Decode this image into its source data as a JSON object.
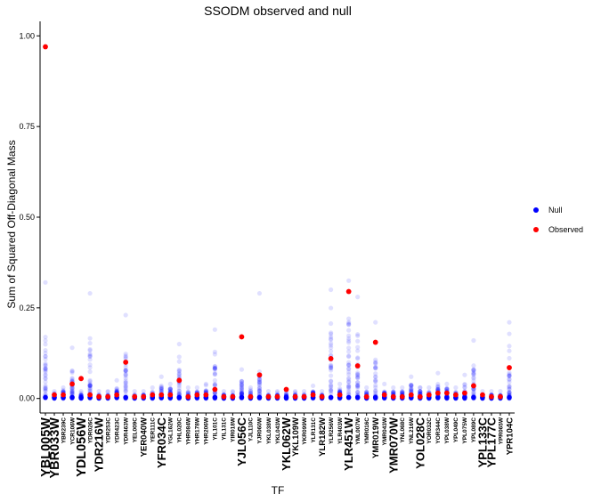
{
  "chart_data": {
    "type": "scatter",
    "title": "SSODM observed and null",
    "xlabel": "TF",
    "ylabel": "Sum of Squared Off-Diagonal Mass",
    "ylim": [
      -0.04,
      1.04
    ],
    "yticks": [
      "0.00",
      "0.25",
      "0.50",
      "0.75",
      "1.00"
    ],
    "grid": false,
    "legend_position": "right",
    "legend": [
      {
        "name": "Null",
        "color": "#0000ff"
      },
      {
        "name": "Observed",
        "color": "#ff0000"
      }
    ],
    "tick_label_size_note": "labels vary in size as in the original",
    "categories": [
      {
        "label": "YBL005W",
        "size": "xl",
        "observed": 0.97,
        "null_max": 0.32,
        "null_dense": 0.18
      },
      {
        "label": "YBR033W",
        "size": "xl",
        "observed": 0.01,
        "null_max": 0.02,
        "null_dense": 0.015
      },
      {
        "label": "YBR239C",
        "size": "s",
        "observed": 0.01,
        "null_max": 0.03,
        "null_dense": 0.02
      },
      {
        "label": "YCR106W",
        "size": "s",
        "observed": 0.04,
        "null_max": 0.14,
        "null_dense": 0.08
      },
      {
        "label": "YDL056W",
        "size": "xl",
        "observed": 0.055,
        "null_max": 0.02,
        "null_dense": 0.01
      },
      {
        "label": "YDR026C",
        "size": "s",
        "observed": 0.01,
        "null_max": 0.29,
        "null_dense": 0.18
      },
      {
        "label": "YDR216W",
        "size": "l",
        "observed": 0.005,
        "null_max": 0.02,
        "null_dense": 0.01
      },
      {
        "label": "YDR253C",
        "size": "s",
        "observed": 0.005,
        "null_max": 0.02,
        "null_dense": 0.01
      },
      {
        "label": "YDR423C",
        "size": "s",
        "observed": 0.01,
        "null_max": 0.05,
        "null_dense": 0.03
      },
      {
        "label": "YDR463W",
        "size": "s",
        "observed": 0.1,
        "null_max": 0.23,
        "null_dense": 0.15
      },
      {
        "label": "YEL009C",
        "size": "s",
        "observed": 0.005,
        "null_max": 0.02,
        "null_dense": 0.01
      },
      {
        "label": "YER040W",
        "size": "m",
        "observed": 0.005,
        "null_max": 0.02,
        "null_dense": 0.01
      },
      {
        "label": "YER111C",
        "size": "s",
        "observed": 0.01,
        "null_max": 0.03,
        "null_dense": 0.02
      },
      {
        "label": "YFR034C",
        "size": "l",
        "observed": 0.01,
        "null_max": 0.06,
        "null_dense": 0.04
      },
      {
        "label": "YGL162W",
        "size": "s",
        "observed": 0.01,
        "null_max": 0.04,
        "null_dense": 0.03
      },
      {
        "label": "YHL020C",
        "size": "s",
        "observed": 0.05,
        "null_max": 0.15,
        "null_dense": 0.08
      },
      {
        "label": "YHR084W",
        "size": "s",
        "observed": 0.005,
        "null_max": 0.03,
        "null_dense": 0.02
      },
      {
        "label": "YHR178W",
        "size": "s",
        "observed": 0.01,
        "null_max": 0.03,
        "null_dense": 0.02
      },
      {
        "label": "YHR206W",
        "size": "s",
        "observed": 0.01,
        "null_max": 0.04,
        "null_dense": 0.03
      },
      {
        "label": "YIL101C",
        "size": "s",
        "observed": 0.025,
        "null_max": 0.19,
        "null_dense": 0.09
      },
      {
        "label": "YIL131C",
        "size": "s",
        "observed": 0.005,
        "null_max": 0.02,
        "null_dense": 0.01
      },
      {
        "label": "YIR018W",
        "size": "s",
        "observed": 0.005,
        "null_max": 0.02,
        "null_dense": 0.01
      },
      {
        "label": "YJL056C",
        "size": "l",
        "observed": 0.17,
        "null_max": 0.08,
        "null_dense": 0.05
      },
      {
        "label": "YJL110C",
        "size": "s",
        "observed": 0.005,
        "null_max": 0.03,
        "null_dense": 0.02
      },
      {
        "label": "YJR060W",
        "size": "s",
        "observed": 0.065,
        "null_max": 0.29,
        "null_dense": 0.08
      },
      {
        "label": "YKL038W",
        "size": "s",
        "observed": 0.005,
        "null_max": 0.02,
        "null_dense": 0.01
      },
      {
        "label": "YKL043W",
        "size": "s",
        "observed": 0.005,
        "null_max": 0.02,
        "null_dense": 0.01
      },
      {
        "label": "YKL062W",
        "size": "l",
        "observed": 0.025,
        "null_max": 0.02,
        "null_dense": 0.01
      },
      {
        "label": "YKL109W",
        "size": "m",
        "observed": 0.005,
        "null_max": 0.02,
        "null_dense": 0.01
      },
      {
        "label": "YKR099W",
        "size": "s",
        "observed": 0.005,
        "null_max": 0.02,
        "null_dense": 0.01
      },
      {
        "label": "YLR131C",
        "size": "s",
        "observed": 0.01,
        "null_max": 0.035,
        "null_dense": 0.02
      },
      {
        "label": "YLR182W",
        "size": "m",
        "observed": 0.005,
        "null_max": 0.02,
        "null_dense": 0.01
      },
      {
        "label": "YLR256W",
        "size": "s",
        "observed": 0.11,
        "null_max": 0.3,
        "null_dense": 0.2
      },
      {
        "label": "YLR403W",
        "size": "s",
        "observed": 0.01,
        "null_max": 0.04,
        "null_dense": 0.02
      },
      {
        "label": "YLR451W",
        "size": "l",
        "observed": 0.295,
        "null_max": 0.325,
        "null_dense": 0.22
      },
      {
        "label": "YML007W",
        "size": "s",
        "observed": 0.09,
        "null_max": 0.28,
        "null_dense": 0.15
      },
      {
        "label": "YMR016C",
        "size": "s",
        "observed": 0.005,
        "null_max": 0.03,
        "null_dense": 0.02
      },
      {
        "label": "YMR019W",
        "size": "m",
        "observed": 0.155,
        "null_max": 0.21,
        "null_dense": 0.12
      },
      {
        "label": "YMR043W",
        "size": "s",
        "observed": 0.01,
        "null_max": 0.04,
        "null_dense": 0.02
      },
      {
        "label": "YMR070W",
        "size": "l",
        "observed": 0.005,
        "null_max": 0.03,
        "null_dense": 0.02
      },
      {
        "label": "YNL068C",
        "size": "s",
        "observed": 0.005,
        "null_max": 0.03,
        "null_dense": 0.02
      },
      {
        "label": "YNL216W",
        "size": "s",
        "observed": 0.01,
        "null_max": 0.06,
        "null_dense": 0.04
      },
      {
        "label": "YOL028C",
        "size": "l",
        "observed": 0.005,
        "null_max": 0.03,
        "null_dense": 0.02
      },
      {
        "label": "YOR032C",
        "size": "s",
        "observed": 0.01,
        "null_max": 0.03,
        "null_dense": 0.02
      },
      {
        "label": "YOR344C",
        "size": "s",
        "observed": 0.015,
        "null_max": 0.07,
        "null_dense": 0.04
      },
      {
        "label": "YPL038W",
        "size": "s",
        "observed": 0.015,
        "null_max": 0.04,
        "null_dense": 0.03
      },
      {
        "label": "YPL049C",
        "size": "s",
        "observed": 0.01,
        "null_max": 0.03,
        "null_dense": 0.02
      },
      {
        "label": "YPL075W",
        "size": "s",
        "observed": 0.015,
        "null_max": 0.065,
        "null_dense": 0.04
      },
      {
        "label": "YPL089C",
        "size": "s",
        "observed": 0.035,
        "null_max": 0.16,
        "null_dense": 0.08
      },
      {
        "label": "YPL133C",
        "size": "l",
        "observed": 0.01,
        "null_max": 0.02,
        "null_dense": 0.01
      },
      {
        "label": "YPL177C",
        "size": "l",
        "observed": 0.005,
        "null_max": 0.02,
        "null_dense": 0.01
      },
      {
        "label": "YPR065W",
        "size": "s",
        "observed": 0.005,
        "null_max": 0.02,
        "null_dense": 0.01
      },
      {
        "label": "YPR104C",
        "size": "m",
        "observed": 0.085,
        "null_max": 0.21,
        "null_dense": 0.07
      }
    ]
  }
}
